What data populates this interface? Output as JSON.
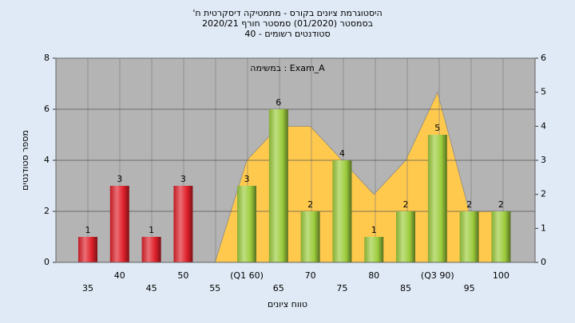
{
  "chart_data": {
    "type": "bar",
    "title_lines": [
      "היסטוגרמת ציונים בקורס - מתמטיקה דיסקרטית ח'",
      "בסמסטר  (01/2020)  סמסטר חורף 2020/21",
      "סטודנטים רשומים - 40"
    ],
    "annotation": "במשימה : Exam_A",
    "xlabel": "טווח ציונים",
    "ylabel": "מספר סטודנטים",
    "categories": [
      "35",
      "40",
      "45",
      "50",
      "55",
      "(Q1 60)",
      "65",
      "70",
      "75",
      "80",
      "85",
      "(Q3 90)",
      "95",
      "100"
    ],
    "values": [
      1,
      3,
      1,
      3,
      0,
      3,
      6,
      2,
      4,
      1,
      2,
      5,
      2,
      2
    ],
    "colors": [
      "#e0202a",
      "#e0202a",
      "#e0202a",
      "#e0202a",
      "#9ccc3c",
      "#9ccc3c",
      "#9ccc3c",
      "#9ccc3c",
      "#9ccc3c",
      "#9ccc3c",
      "#9ccc3c",
      "#9ccc3c",
      "#9ccc3c",
      "#9ccc3c"
    ],
    "area": {
      "color": "#ffc94d",
      "axis": "y2",
      "values": [
        null,
        null,
        null,
        null,
        0,
        3,
        4,
        4,
        3,
        2,
        3,
        5,
        1.5,
        1.5
      ]
    },
    "ylim": [
      0,
      8
    ],
    "yticks": [
      0,
      2,
      4,
      6,
      8
    ],
    "y2lim": [
      0,
      6
    ],
    "y2ticks": [
      0,
      1,
      2,
      3,
      4,
      5,
      6
    ],
    "grid": true
  }
}
